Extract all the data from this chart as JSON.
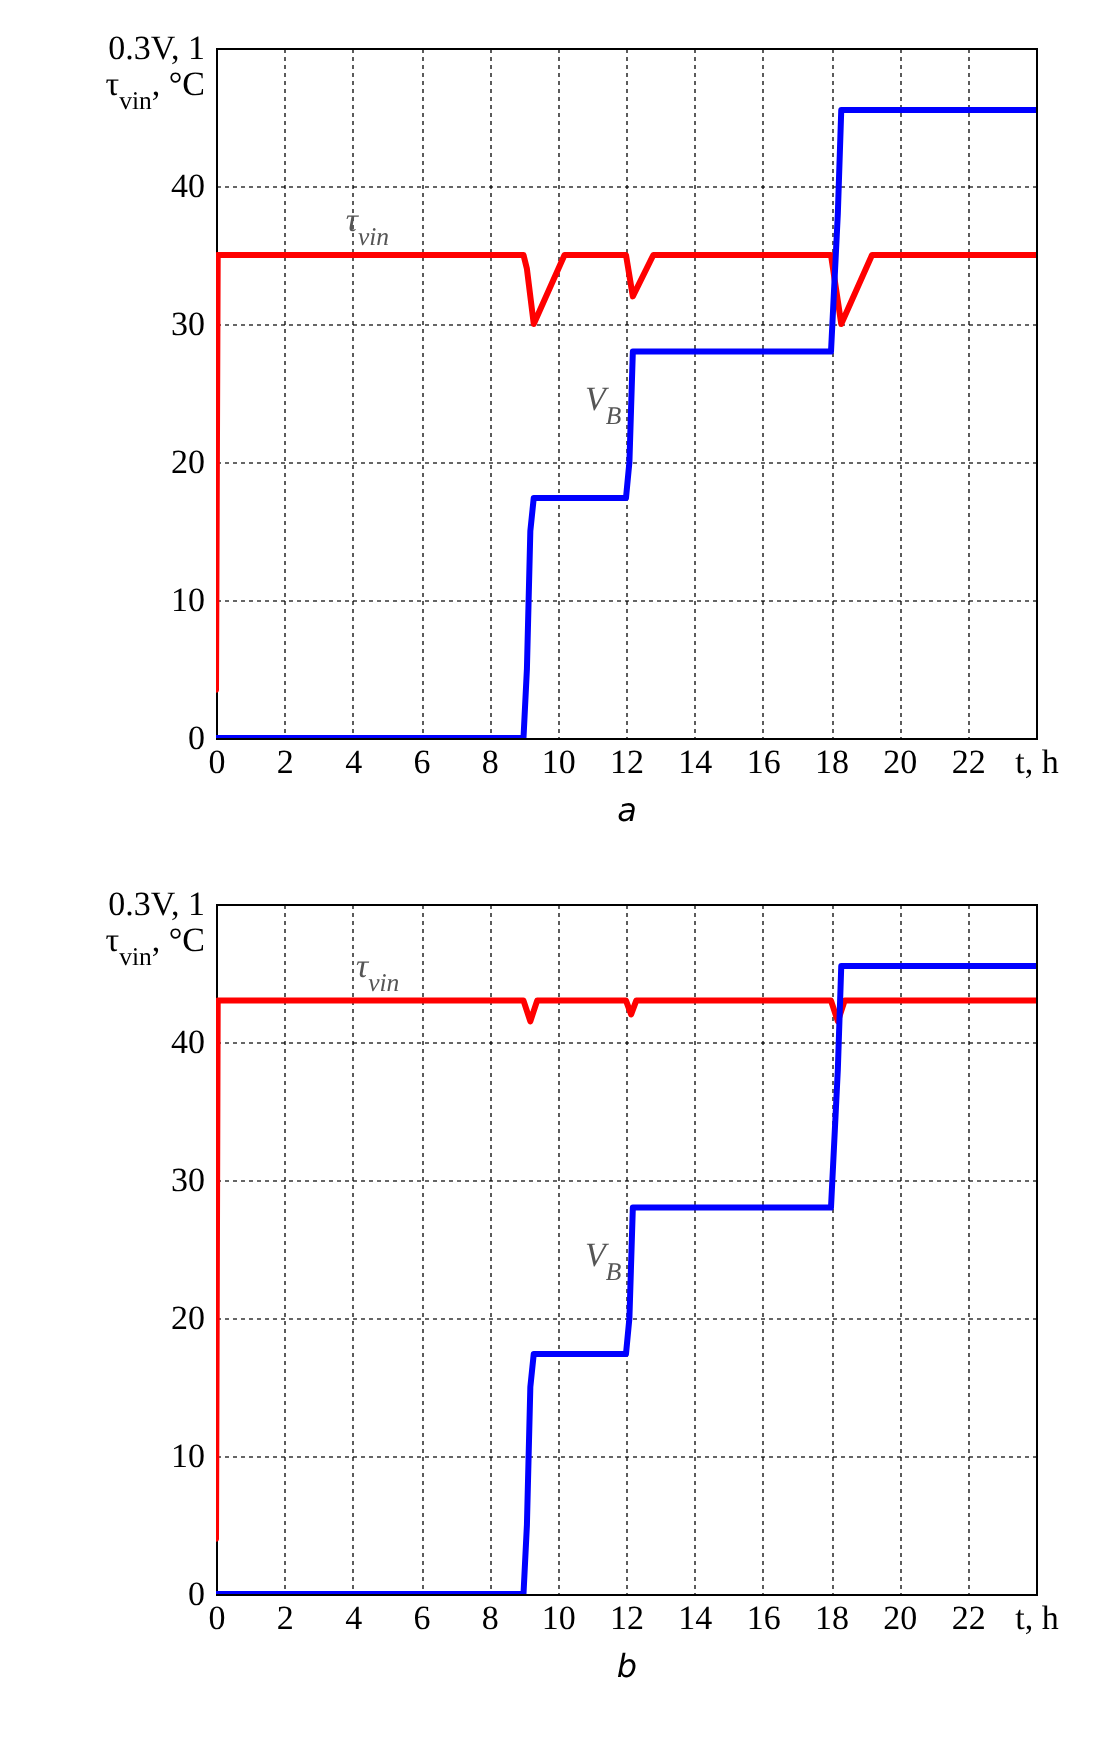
{
  "chart_data": [
    {
      "type": "line",
      "xlabel": "a",
      "ylabel": "τ$_{vin}$, °C",
      "xlim": [
        0,
        24
      ],
      "ylim": [
        0,
        50
      ],
      "xticks": [
        0,
        2,
        4,
        6,
        8,
        10,
        12,
        14,
        16,
        18,
        20,
        22,
        {
          "value": 24,
          "label": "t, h"
        }
      ],
      "yticks": [
        0,
        10,
        20,
        30,
        40,
        {
          "value": 50,
          "label": "0.3V, 1"
        }
      ],
      "grid": true,
      "line_style": "solid",
      "marker": "none",
      "series": [
        {
          "color": "#ff0000",
          "x": [
            0,
            0.05,
            9,
            9.1,
            9.3,
            10.2,
            12,
            12.2,
            12.8,
            18,
            18.3,
            19.2,
            24
          ],
          "values": [
            3.5,
            35,
            35,
            34,
            30,
            35,
            35,
            32,
            35,
            35,
            30,
            35,
            35
          ]
        },
        {
          "color": "#0000ff",
          "x": [
            0,
            9,
            9.1,
            9.2,
            9.3,
            12,
            12.1,
            12.2,
            18,
            18.2,
            18.3,
            24
          ],
          "values": [
            0,
            0,
            5,
            15,
            17.4,
            17.4,
            20,
            28,
            28,
            38,
            45.5,
            45.5
          ]
        }
      ],
      "annotations": [
        {
          "text": "τ$_{vin}$",
          "x": 5.3,
          "y": 35
        },
        {
          "text": "V$_{B}$",
          "x": 12.1,
          "y": 22
        }
      ]
    },
    {
      "type": "line",
      "xlabel": "b",
      "ylabel": "τ$_{vin}$, °C",
      "xlim": [
        0,
        24
      ],
      "ylim": [
        0,
        50
      ],
      "xticks": [
        0,
        2,
        4,
        6,
        8,
        10,
        12,
        14,
        16,
        18,
        20,
        22,
        {
          "value": 24,
          "label": "t, h"
        }
      ],
      "yticks": [
        0,
        10,
        20,
        30,
        40,
        {
          "value": 50,
          "label": "0.3V, 1"
        }
      ],
      "grid": true,
      "line_style": "solid",
      "marker": "none",
      "series": [
        {
          "color": "#ff0000",
          "x": [
            0,
            0.05,
            9,
            9.2,
            9.4,
            12,
            12.15,
            12.3,
            18,
            18.2,
            18.4,
            24
          ],
          "values": [
            4,
            43,
            43,
            41.5,
            43,
            43,
            42,
            43,
            43,
            41.5,
            43,
            43
          ]
        },
        {
          "color": "#0000ff",
          "x": [
            0,
            9,
            9.1,
            9.2,
            9.3,
            12,
            12.1,
            12.2,
            18,
            18.2,
            18.3,
            24
          ],
          "values": [
            0,
            0,
            5,
            15,
            17.4,
            17.4,
            20,
            28,
            28,
            38,
            45.5,
            45.5
          ]
        }
      ],
      "annotations": [
        {
          "text": "τ$_{vin}$",
          "x": 5.6,
          "y": 43
        },
        {
          "text": "V$_{B}$",
          "x": 12.1,
          "y": 22
        }
      ]
    }
  ]
}
